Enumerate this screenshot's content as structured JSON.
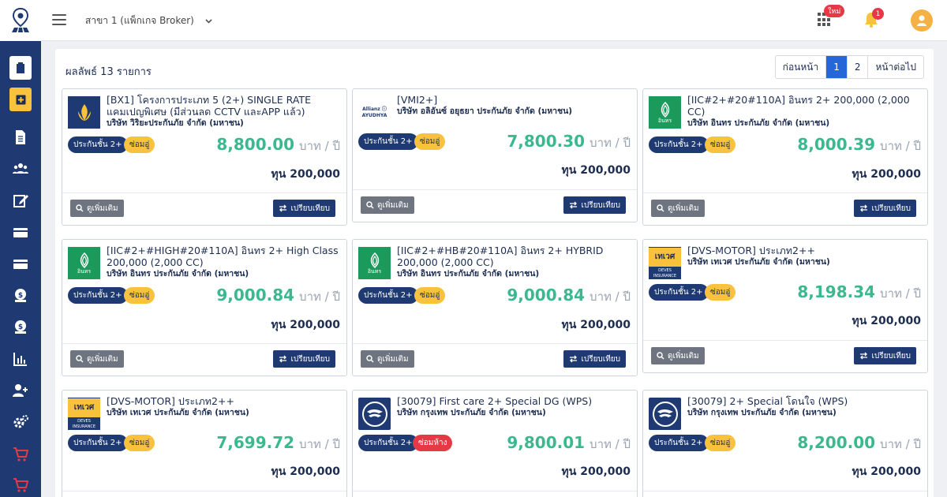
{
  "topbar": {
    "branch": "สาขา 1 (แพ็กเกจ Broker)",
    "new_badge": "ใหม่",
    "notification_count": "1"
  },
  "results_text": "ผลลัพธ์ 13 รายการ",
  "pagination": {
    "prev": "ก่อนหน้า",
    "pages": [
      "1",
      "2"
    ],
    "current": "1",
    "next": "หน้าต่อไป"
  },
  "labels": {
    "price_unit": "บาท / ปี",
    "sum_prefix": "ทุน",
    "more_button": "ดูเพิ่มเติม",
    "compare_button": "เปรียบเทียบ"
  },
  "cards": [
    {
      "title": "[BX1] โครงการประเภท 5 (2+) SINGLE RATE แคมเปญพิเศษ (มีส่วนลด CCTV และAPP แล้ว)",
      "company": "บริษัท วิริยะประกันภัย จำกัด (มหาชน)",
      "type": "ประกันชั้น 2+",
      "repair": "ซ่อมอู่",
      "price": "8,800.00",
      "sum_insured": "200,000",
      "logo": "viriyah"
    },
    {
      "title": "[VMI2+]",
      "company": "บริษัท อลิอันซ์ อยุธยา ประกันภัย จำกัด (มหาชน)",
      "type": "ประกันชั้น 2+",
      "repair": "ซ่อมอู่",
      "price": "7,800.30",
      "sum_insured": "200,000",
      "logo": "allianz",
      "logo_text": "Allianz ⓘ AYUDHYA"
    },
    {
      "title": "[IIC#2+#20#110A] อินทร 2+ 200,000 (2,000 CC)",
      "company": "บริษัท อินทร ประกันภัย จำกัด (มหาชน)",
      "type": "ประกันชั้น 2+",
      "repair": "ซ่อมอู่",
      "price": "8,000.39",
      "sum_insured": "200,000",
      "logo": "indara",
      "logo_text": "อินทร"
    },
    {
      "title": "[IIC#2+#HIGH#20#110A] อินทร 2+ High Class 200,000 (2,000 CC)",
      "company": "บริษัท อินทร ประกันภัย จำกัด (มหาชน)",
      "type": "ประกันชั้น 2+",
      "repair": "ซ่อมอู่",
      "price": "9,000.84",
      "sum_insured": "200,000",
      "logo": "indara",
      "logo_text": "อินทร"
    },
    {
      "title": "[IIC#2+#HB#20#110A] อินทร 2+ HYBRID 200,000 (2,000 CC)",
      "company": "บริษัท อินทร ประกันภัย จำกัด (มหาชน)",
      "type": "ประกันชั้น 2+",
      "repair": "ซ่อมอู่",
      "price": "9,000.84",
      "sum_insured": "200,000",
      "logo": "indara",
      "logo_text": "อินทร"
    },
    {
      "title": "[DVS-MOTOR] ประเภท2++",
      "company": "บริษัท เทเวศ ประกันภัย จำกัด (มหาชน)",
      "type": "ประกันชั้น 2+",
      "repair": "ซ่อมอู่",
      "price": "8,198.34",
      "sum_insured": "200,000",
      "logo": "deves",
      "logo_text": "เทเวศ",
      "logo_sub": "DEVES INSURANCE"
    },
    {
      "title": "[DVS-MOTOR] ประเภท2++",
      "company": "บริษัท เทเวศ ประกันภัย จำกัด (มหาชน)",
      "type": "ประกันชั้น 2+",
      "repair": "ซ่อมอู่",
      "price": "7,699.72",
      "sum_insured": "200,000",
      "logo": "deves",
      "logo_text": "เทเวศ",
      "logo_sub": "DEVES INSURANCE"
    },
    {
      "title": "[30079] First care 2+ Special DG (WPS)",
      "company": "บริษัท กรุงเทพ ประกันภัย จำกัด (มหาชน)",
      "type": "ประกันชั้น 2+",
      "repair": "ซ่อมห้าง",
      "price": "9,800.01",
      "sum_insured": "200,000",
      "logo": "bki"
    },
    {
      "title": "[30079] 2+ Special โดนใจ (WPS)",
      "company": "บริษัท กรุงเทพ ประกันภัย จำกัด (มหาชน)",
      "type": "ประกันชั้น 2+",
      "repair": "ซ่อมอู่",
      "price": "8,200.00",
      "sum_insured": "200,000",
      "logo": "bki"
    }
  ],
  "colors": {
    "navy": "#1f3a73",
    "accent": "#f9c23c",
    "price": "#3bb98e",
    "danger": "#e53946",
    "primary": "#2567d8"
  }
}
